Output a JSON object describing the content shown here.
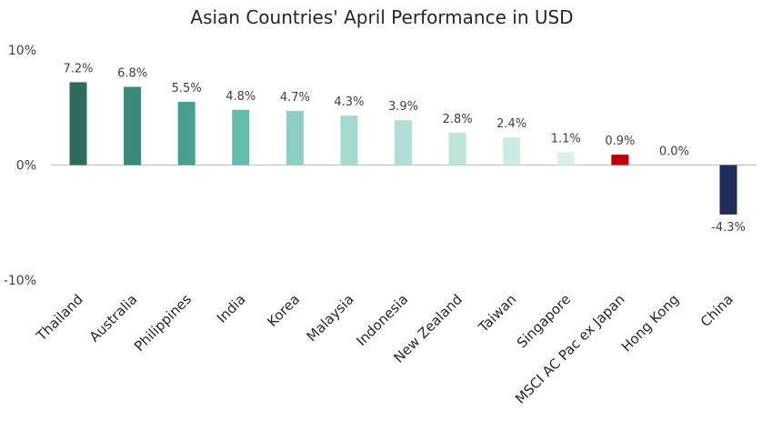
{
  "chart_data": {
    "type": "bar",
    "title": "Asian Countries' April Performance in USD",
    "xlabel": "",
    "ylabel": "",
    "ylim": [
      -10,
      10
    ],
    "yticks": [
      "10%",
      "0%",
      "-10%"
    ],
    "grid": false,
    "categories": [
      "Thailand",
      "Australia",
      "Philippines",
      "India",
      "Korea",
      "Malaysia",
      "Indonesia",
      "New Zealand",
      "Taiwan",
      "Singapore",
      "MSCI AC Pac ex Japan",
      "Hong Kong",
      "China"
    ],
    "values": [
      7.2,
      6.8,
      5.5,
      4.8,
      4.7,
      4.3,
      3.9,
      2.8,
      2.4,
      1.1,
      0.9,
      0.0,
      -4.3
    ],
    "value_labels": [
      "7.2%",
      "6.8%",
      "5.5%",
      "4.8%",
      "4.7%",
      "4.3%",
      "3.9%",
      "2.8%",
      "2.4%",
      "1.1%",
      "0.9%",
      "0.0%",
      "-4.3%"
    ],
    "colors": [
      "#2e6b5f",
      "#3a8a7a",
      "#47a08f",
      "#63bcab",
      "#8dd0c3",
      "#a3d9ce",
      "#b0dfd5",
      "#bde5dc",
      "#cbebe4",
      "#d9f1ec",
      "#c00000",
      "#e8f6f2",
      "#1f2d5c"
    ]
  }
}
